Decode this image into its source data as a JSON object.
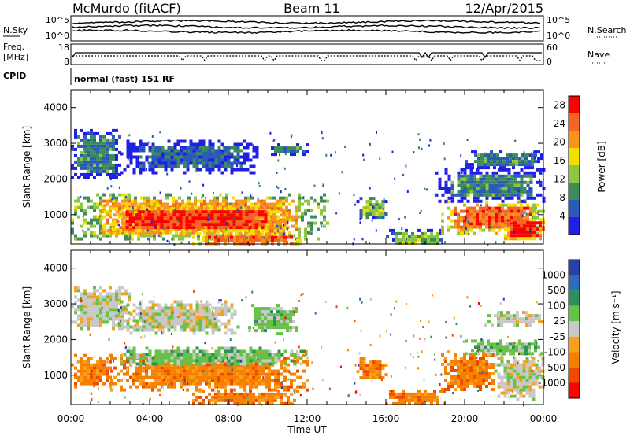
{
  "header": {
    "station": "McMurdo (fitACF)",
    "beam": "Beam 11",
    "date": "12/Apr/2015"
  },
  "summary_panels": {
    "nsky_label": "N.Sky",
    "nsky_ticks": [
      "10^5",
      "10^0"
    ],
    "nsearch_label": "N.Search",
    "freq_label_line1": "Freq.",
    "freq_label_line2": "[MHz]",
    "freq_ticks": [
      "18",
      "8"
    ],
    "nave_label": "Nave",
    "nave_ticks": [
      "60",
      "0"
    ],
    "cpid_label": "CPID",
    "cpid_text": "normal (fast) 151 RF"
  },
  "colors": {
    "power_scale": [
      "#1f1fe6",
      "#2b5ab8",
      "#3d8b5a",
      "#8dc63f",
      "#f0e000",
      "#f7941d",
      "#f26522",
      "#ff0000"
    ],
    "velocity_scale": [
      "#2b3fa8",
      "#2e6bb8",
      "#2f8f5a",
      "#66c244",
      "#c8c8c8",
      "#f7a01a",
      "#f77f00",
      "#f04a00",
      "#ff0000"
    ]
  },
  "chart_data": [
    {
      "type": "heatmap",
      "panel": "power",
      "xlabel": "Time UT",
      "ylabel": "Slant Range [km]",
      "xlim": [
        0,
        24
      ],
      "ylim": [
        180,
        4500
      ],
      "x_tick_labels": [
        "00:00",
        "04:00",
        "08:00",
        "12:00",
        "16:00",
        "20:00",
        "00:00"
      ],
      "y_ticks": [
        1000,
        2000,
        3000,
        4000
      ],
      "colorbar": {
        "label": "Power [dB]",
        "ticks": [
          "4",
          "8",
          "12",
          "16",
          "20",
          "24",
          "28"
        ],
        "range": [
          0,
          30
        ]
      },
      "regions": [
        {
          "t0": 0.0,
          "t1": 13.0,
          "r0": 300,
          "r1": 1600,
          "level": 20
        },
        {
          "t0": 1.5,
          "t1": 11.0,
          "r0": 500,
          "r1": 1300,
          "level": 27
        },
        {
          "t0": 0.0,
          "t1": 2.5,
          "r0": 2000,
          "r1": 3400,
          "level": 8
        },
        {
          "t0": 2.5,
          "t1": 9.5,
          "r0": 2200,
          "r1": 3100,
          "level": 6
        },
        {
          "t0": 10.0,
          "t1": 12.0,
          "r0": 2700,
          "r1": 3000,
          "level": 8
        },
        {
          "t0": 6.0,
          "t1": 12.0,
          "r0": 180,
          "r1": 500,
          "level": 24
        },
        {
          "t0": 14.5,
          "t1": 16.0,
          "r0": 900,
          "r1": 1500,
          "level": 14
        },
        {
          "t0": 16.0,
          "t1": 19.0,
          "r0": 180,
          "r1": 600,
          "level": 12
        },
        {
          "t0": 18.8,
          "t1": 24.0,
          "r0": 500,
          "r1": 1400,
          "level": 24
        },
        {
          "t0": 18.5,
          "t1": 24.0,
          "r0": 1400,
          "r1": 2300,
          "level": 8
        },
        {
          "t0": 20.0,
          "t1": 24.0,
          "r0": 2300,
          "r1": 2800,
          "level": 8
        },
        {
          "t0": 22.0,
          "t1": 24.0,
          "r0": 300,
          "r1": 900,
          "level": 28
        }
      ]
    },
    {
      "type": "heatmap",
      "panel": "velocity",
      "xlabel": "Time UT",
      "ylabel": "Slant Range [km]",
      "xlim": [
        0,
        24
      ],
      "ylim": [
        180,
        4500
      ],
      "x_tick_labels": [
        "00:00",
        "04:00",
        "08:00",
        "12:00",
        "16:00",
        "20:00",
        "00:00"
      ],
      "y_ticks": [
        1000,
        2000,
        3000,
        4000
      ],
      "colorbar": {
        "label": "Velocity [m s⁻¹]",
        "ticks": [
          "1000",
          "500",
          "100",
          "25",
          "-25",
          "-100",
          "-500",
          "-1000"
        ]
      },
      "regions": [
        {
          "t0": 0.0,
          "t1": 2.0,
          "r0": 700,
          "r1": 1600,
          "class": 6
        },
        {
          "t0": 2.0,
          "t1": 12.0,
          "r0": 600,
          "r1": 1600,
          "class": 6
        },
        {
          "t0": 2.5,
          "t1": 12.0,
          "r0": 1300,
          "r1": 1800,
          "class": 3
        },
        {
          "t0": 0.0,
          "t1": 3.0,
          "r0": 2300,
          "r1": 3500,
          "class": 4
        },
        {
          "t0": 2.5,
          "t1": 8.5,
          "r0": 2200,
          "r1": 3100,
          "class": 4
        },
        {
          "t0": 9.0,
          "t1": 11.5,
          "r0": 2200,
          "r1": 3000,
          "class": 3
        },
        {
          "t0": 6.0,
          "t1": 11.5,
          "r0": 200,
          "r1": 600,
          "class": 6
        },
        {
          "t0": 14.5,
          "t1": 16.0,
          "r0": 900,
          "r1": 1500,
          "class": 6
        },
        {
          "t0": 16.0,
          "t1": 19.0,
          "r0": 180,
          "r1": 600,
          "class": 6
        },
        {
          "t0": 18.8,
          "t1": 21.5,
          "r0": 600,
          "r1": 1700,
          "class": 6
        },
        {
          "t0": 21.5,
          "t1": 24.0,
          "r0": 300,
          "r1": 1600,
          "class": 4
        },
        {
          "t0": 20.0,
          "t1": 24.0,
          "r0": 1600,
          "r1": 2000,
          "class": 3
        },
        {
          "t0": 21.0,
          "t1": 24.0,
          "r0": 2400,
          "r1": 2800,
          "class": 4
        }
      ]
    }
  ]
}
